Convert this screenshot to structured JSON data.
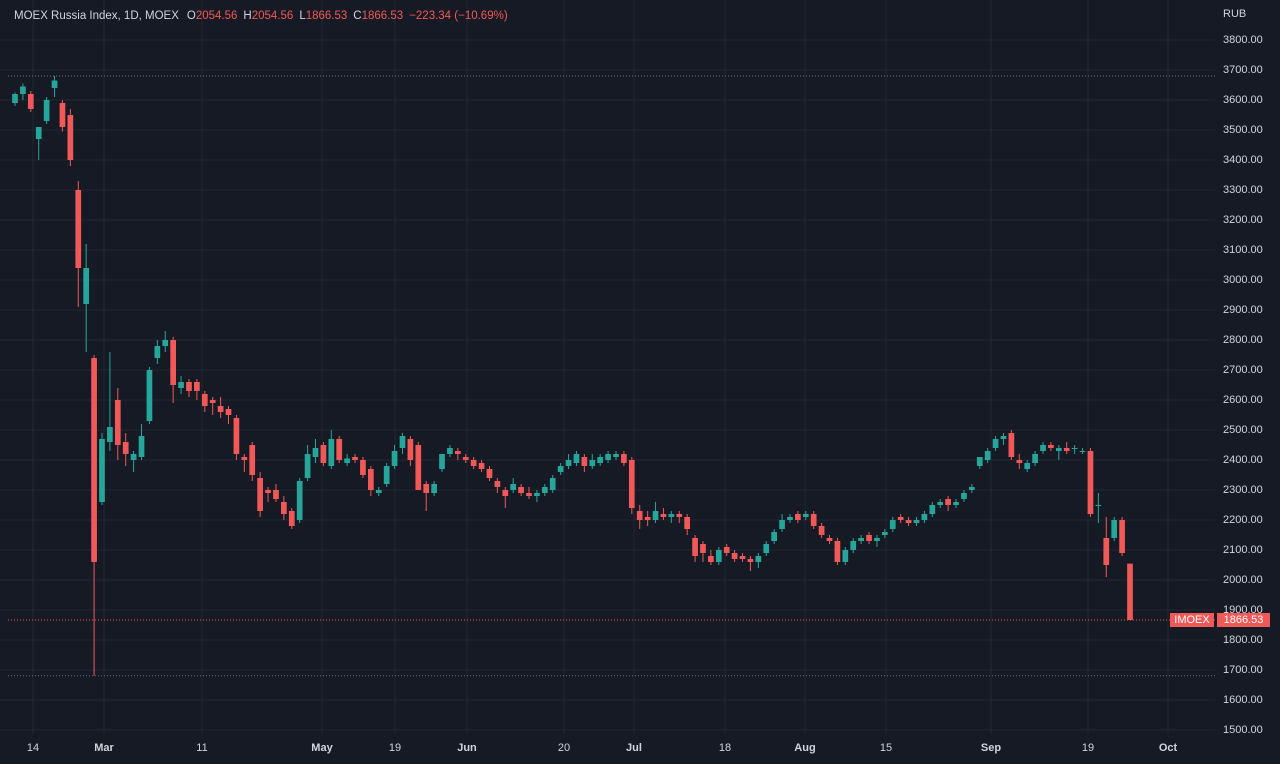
{
  "legend": {
    "symbol": "MOEX Russia Index, 1D, MOEX",
    "o_label": "O",
    "o_value": "2054.56",
    "h_label": "H",
    "h_value": "2054.56",
    "l_label": "L",
    "l_value": "1866.53",
    "c_label": "C",
    "c_value": "1866.53",
    "change": "−223.34 (−10.69%)"
  },
  "price_tag": {
    "name": "IMOEX",
    "value": "1866.53"
  },
  "colors": {
    "background": "#161a25",
    "up": "#26a69a",
    "down": "#f15858",
    "grid": "#222733",
    "text": "#d1d4dc"
  },
  "chart_data": {
    "type": "candlestick",
    "currency": "RUB",
    "ylim": [
      1500,
      3800
    ],
    "y_ticks": [
      "1500.00",
      "1600.00",
      "1700.00",
      "1800.00",
      "1900.00",
      "2000.00",
      "2100.00",
      "2200.00",
      "2300.00",
      "2400.00",
      "2500.00",
      "2600.00",
      "2700.00",
      "2800.00",
      "2900.00",
      "3000.00",
      "3100.00",
      "3200.00",
      "3300.00",
      "3400.00",
      "3500.00",
      "3600.00",
      "3700.00",
      "3800.00"
    ],
    "x_ticks": [
      {
        "label": "14",
        "major": false
      },
      {
        "label": "Mar",
        "major": true
      },
      {
        "label": "11",
        "major": false
      },
      {
        "label": "May",
        "major": true
      },
      {
        "label": "19",
        "major": false
      },
      {
        "label": "Jun",
        "major": true
      },
      {
        "label": "20",
        "major": false
      },
      {
        "label": "Jul",
        "major": true
      },
      {
        "label": "18",
        "major": false
      },
      {
        "label": "Aug",
        "major": true
      },
      {
        "label": "15",
        "major": false
      },
      {
        "label": "Sep",
        "major": true
      },
      {
        "label": "19",
        "major": false
      },
      {
        "label": "Oct",
        "major": true
      }
    ],
    "last_price": 1866.53,
    "period_high": 3680,
    "period_low": 1681,
    "candles": [
      [
        3590,
        3625,
        3580,
        3620
      ],
      [
        3620,
        3655,
        3600,
        3645
      ],
      [
        3620,
        3630,
        3560,
        3570
      ],
      [
        3470,
        3510,
        3400,
        3510
      ],
      [
        3530,
        3610,
        3520,
        3600
      ],
      [
        3640,
        3680,
        3610,
        3665
      ],
      [
        3590,
        3600,
        3495,
        3510
      ],
      [
        3550,
        3570,
        3380,
        3400
      ],
      [
        3300,
        3330,
        2910,
        3040
      ],
      [
        2920,
        3120,
        2760,
        3040
      ],
      [
        2740,
        2750,
        1681,
        2060
      ],
      [
        2260,
        2490,
        2250,
        2470
      ],
      [
        2460,
        2760,
        2430,
        2510
      ],
      [
        2600,
        2640,
        2400,
        2450
      ],
      [
        2460,
        2490,
        2380,
        2420
      ],
      [
        2400,
        2430,
        2360,
        2420
      ],
      [
        2410,
        2520,
        2400,
        2480
      ],
      [
        2530,
        2710,
        2520,
        2700
      ],
      [
        2740,
        2800,
        2720,
        2780
      ],
      [
        2780,
        2830,
        2760,
        2800
      ],
      [
        2800,
        2810,
        2590,
        2650
      ],
      [
        2640,
        2680,
        2620,
        2660
      ],
      [
        2660,
        2670,
        2610,
        2630
      ],
      [
        2660,
        2670,
        2600,
        2630
      ],
      [
        2620,
        2630,
        2560,
        2580
      ],
      [
        2600,
        2610,
        2550,
        2590
      ],
      [
        2580,
        2610,
        2540,
        2560
      ],
      [
        2570,
        2580,
        2520,
        2550
      ],
      [
        2540,
        2550,
        2400,
        2420
      ],
      [
        2410,
        2420,
        2360,
        2400
      ],
      [
        2450,
        2460,
        2330,
        2350
      ],
      [
        2340,
        2360,
        2210,
        2230
      ],
      [
        2300,
        2310,
        2260,
        2290
      ],
      [
        2300,
        2320,
        2260,
        2270
      ],
      [
        2260,
        2280,
        2200,
        2220
      ],
      [
        2230,
        2240,
        2170,
        2180
      ],
      [
        2200,
        2340,
        2190,
        2330
      ],
      [
        2340,
        2450,
        2330,
        2420
      ],
      [
        2410,
        2470,
        2390,
        2440
      ],
      [
        2450,
        2460,
        2380,
        2390
      ],
      [
        2380,
        2500,
        2370,
        2470
      ],
      [
        2470,
        2480,
        2390,
        2400
      ],
      [
        2390,
        2420,
        2380,
        2405
      ],
      [
        2410,
        2420,
        2390,
        2400
      ],
      [
        2400,
        2410,
        2340,
        2350
      ],
      [
        2370,
        2380,
        2280,
        2300
      ],
      [
        2290,
        2310,
        2280,
        2300
      ],
      [
        2320,
        2390,
        2310,
        2380
      ],
      [
        2380,
        2450,
        2370,
        2430
      ],
      [
        2440,
        2490,
        2420,
        2480
      ],
      [
        2470,
        2480,
        2380,
        2400
      ],
      [
        2450,
        2460,
        2300,
        2300
      ],
      [
        2320,
        2330,
        2230,
        2290
      ],
      [
        2290,
        2330,
        2280,
        2320
      ],
      [
        2370,
        2420,
        2360,
        2420
      ],
      [
        2420,
        2450,
        2410,
        2440
      ],
      [
        2430,
        2440,
        2400,
        2420
      ],
      [
        2410,
        2420,
        2390,
        2400
      ],
      [
        2400,
        2410,
        2370,
        2380
      ],
      [
        2390,
        2400,
        2360,
        2370
      ],
      [
        2370,
        2380,
        2330,
        2340
      ],
      [
        2330,
        2340,
        2290,
        2310
      ],
      [
        2300,
        2310,
        2240,
        2280
      ],
      [
        2300,
        2340,
        2290,
        2320
      ],
      [
        2310,
        2320,
        2280,
        2290
      ],
      [
        2290,
        2310,
        2270,
        2280
      ],
      [
        2280,
        2300,
        2260,
        2290
      ],
      [
        2290,
        2320,
        2280,
        2310
      ],
      [
        2300,
        2350,
        2290,
        2340
      ],
      [
        2360,
        2390,
        2350,
        2380
      ],
      [
        2380,
        2420,
        2370,
        2400
      ],
      [
        2390,
        2430,
        2380,
        2420
      ],
      [
        2410,
        2420,
        2360,
        2380
      ],
      [
        2380,
        2420,
        2370,
        2400
      ],
      [
        2390,
        2420,
        2380,
        2410
      ],
      [
        2400,
        2430,
        2390,
        2420
      ],
      [
        2410,
        2430,
        2400,
        2420
      ],
      [
        2420,
        2430,
        2380,
        2390
      ],
      [
        2400,
        2410,
        2220,
        2240
      ],
      [
        2230,
        2250,
        2170,
        2200
      ],
      [
        2210,
        2230,
        2180,
        2200
      ],
      [
        2200,
        2260,
        2190,
        2230
      ],
      [
        2220,
        2240,
        2200,
        2210
      ],
      [
        2210,
        2230,
        2190,
        2220
      ],
      [
        2220,
        2230,
        2190,
        2210
      ],
      [
        2210,
        2220,
        2150,
        2170
      ],
      [
        2140,
        2150,
        2060,
        2080
      ],
      [
        2120,
        2130,
        2060,
        2090
      ],
      [
        2080,
        2100,
        2050,
        2060
      ],
      [
        2060,
        2110,
        2050,
        2100
      ],
      [
        2110,
        2120,
        2080,
        2090
      ],
      [
        2090,
        2100,
        2060,
        2070
      ],
      [
        2080,
        2090,
        2060,
        2070
      ],
      [
        2070,
        2080,
        2030,
        2060
      ],
      [
        2060,
        2090,
        2040,
        2080
      ],
      [
        2090,
        2130,
        2080,
        2120
      ],
      [
        2130,
        2170,
        2120,
        2160
      ],
      [
        2170,
        2220,
        2160,
        2200
      ],
      [
        2200,
        2220,
        2190,
        2210
      ],
      [
        2220,
        2230,
        2190,
        2200
      ],
      [
        2210,
        2230,
        2200,
        2220
      ],
      [
        2220,
        2230,
        2170,
        2180
      ],
      [
        2180,
        2190,
        2140,
        2150
      ],
      [
        2140,
        2150,
        2120,
        2130
      ],
      [
        2130,
        2140,
        2050,
        2060
      ],
      [
        2060,
        2110,
        2050,
        2100
      ],
      [
        2100,
        2140,
        2090,
        2130
      ],
      [
        2130,
        2150,
        2120,
        2140
      ],
      [
        2150,
        2160,
        2120,
        2130
      ],
      [
        2130,
        2150,
        2110,
        2140
      ],
      [
        2150,
        2170,
        2140,
        2160
      ],
      [
        2170,
        2210,
        2160,
        2200
      ],
      [
        2210,
        2220,
        2190,
        2200
      ],
      [
        2200,
        2210,
        2180,
        2190
      ],
      [
        2190,
        2210,
        2180,
        2200
      ],
      [
        2200,
        2230,
        2190,
        2220
      ],
      [
        2220,
        2260,
        2210,
        2250
      ],
      [
        2250,
        2270,
        2240,
        2260
      ],
      [
        2270,
        2280,
        2230,
        2250
      ],
      [
        2250,
        2270,
        2240,
        2260
      ],
      [
        2270,
        2300,
        2260,
        2290
      ],
      [
        2300,
        2320,
        2290,
        2310
      ],
      [
        2380,
        2410,
        2370,
        2410
      ],
      [
        2400,
        2440,
        2390,
        2430
      ],
      [
        2440,
        2480,
        2430,
        2470
      ],
      [
        2470,
        2490,
        2450,
        2480
      ],
      [
        2490,
        2500,
        2400,
        2410
      ],
      [
        2400,
        2420,
        2370,
        2390
      ],
      [
        2370,
        2400,
        2360,
        2390
      ],
      [
        2390,
        2430,
        2380,
        2420
      ],
      [
        2430,
        2460,
        2420,
        2450
      ],
      [
        2450,
        2460,
        2430,
        2440
      ],
      [
        2430,
        2450,
        2400,
        2440
      ],
      [
        2440,
        2460,
        2420,
        2430
      ],
      [
        2440,
        2450,
        2420,
        2440
      ],
      [
        2430,
        2440,
        2420,
        2430
      ],
      [
        2430,
        2440,
        2210,
        2220
      ],
      [
        2250,
        2290,
        2190,
        2250
      ],
      [
        2140,
        2210,
        2010,
        2050
      ],
      [
        2140,
        2210,
        2130,
        2200
      ],
      [
        2200,
        2210,
        2080,
        2090
      ],
      [
        2054.56,
        2054.56,
        1866.53,
        1866.53
      ]
    ]
  }
}
